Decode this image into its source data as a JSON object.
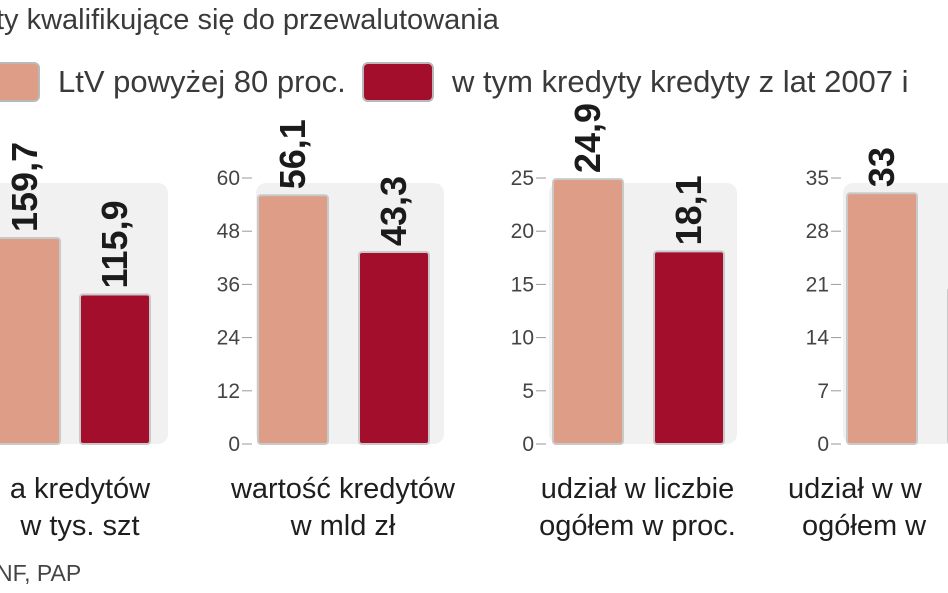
{
  "title": "ty kwalifikujące się do przewalutowania",
  "legend": [
    {
      "label": "LtV powyżej 80 proc.",
      "color": "#dd9d86"
    },
    {
      "label": "w tym kredyty kredyty z lat 2007 i",
      "color": "#a30e2c"
    }
  ],
  "source": "NF, PAP",
  "chart_data": [
    {
      "type": "bar",
      "xlabel": [
        "a kredytów",
        "w tys. szt"
      ],
      "ylim": [
        0,
        null
      ],
      "series": [
        {
          "values": [
            159.7
          ],
          "labels": [
            "159,7"
          ],
          "color": "#dd9d86"
        },
        {
          "values": [
            115.9
          ],
          "labels": [
            "115,9"
          ],
          "color": "#a30e2c"
        }
      ]
    },
    {
      "type": "bar",
      "xlabel": [
        "wartość kredytów",
        "w mld zł"
      ],
      "yticks": [
        "0",
        "12",
        "24",
        "36",
        "48",
        "60"
      ],
      "ylim": [
        0,
        60
      ],
      "series": [
        {
          "values": [
            56.1
          ],
          "labels": [
            "56,1"
          ],
          "color": "#dd9d86"
        },
        {
          "values": [
            43.3
          ],
          "labels": [
            "43,3"
          ],
          "color": "#a30e2c"
        }
      ]
    },
    {
      "type": "bar",
      "xlabel": [
        "udział w liczbie",
        "ogółem w proc."
      ],
      "yticks": [
        "0",
        "5",
        "10",
        "15",
        "20",
        "25"
      ],
      "ylim": [
        0,
        25
      ],
      "series": [
        {
          "values": [
            24.9
          ],
          "labels": [
            "24,9"
          ],
          "color": "#dd9d86"
        },
        {
          "values": [
            18.1
          ],
          "labels": [
            "18,1"
          ],
          "color": "#a30e2c"
        }
      ]
    },
    {
      "type": "bar",
      "xlabel": [
        "udział w w",
        "ogółem w"
      ],
      "yticks": [
        "0",
        "7",
        "14",
        "21",
        "28",
        "35"
      ],
      "ylim": [
        0,
        35
      ],
      "series": [
        {
          "values": [
            33
          ],
          "labels": [
            "33"
          ],
          "color": "#dd9d86"
        },
        {
          "values": [
            null
          ],
          "labels": [
            ""
          ],
          "color": "#a30e2c"
        }
      ]
    }
  ]
}
